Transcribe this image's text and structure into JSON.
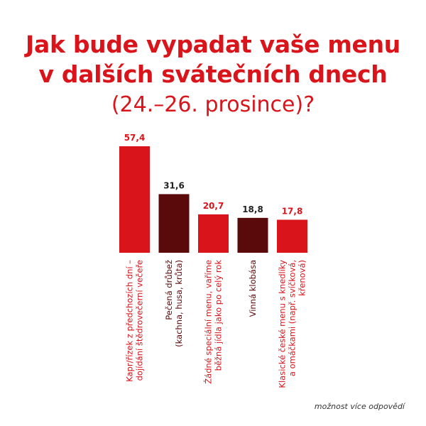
{
  "title_line1": "Jak bude vypadat vaše menu",
  "title_line2": "v dalších svátečních dnech",
  "subtitle": "(24.–26. prosince)?",
  "footnote": "možnost více odpovědí",
  "colors": {
    "accent": "#d9141b",
    "dark": "#5b0a0c",
    "label_dark": "#222222"
  },
  "chart_data": {
    "type": "bar",
    "categories": [
      [
        "Kapr/řízek z předchozích dní –",
        "dojídání štědrovečerní večeře"
      ],
      [
        "Pečená drůbež",
        "(kachna, husa, krůta)"
      ],
      [
        "Žádné speciální menu, vaříme",
        "běžná jídla jako po celý rok"
      ],
      [
        "Vinná klobása"
      ],
      [
        "Klasické české menu s knedlíky",
        "a omáčkami (např. svíčková,",
        "křenová)"
      ]
    ],
    "values": [
      57.4,
      31.6,
      20.7,
      18.8,
      17.8
    ],
    "value_labels": [
      "57,4",
      "31,6",
      "20,7",
      "18,8",
      "17,8"
    ],
    "bar_colors": [
      "#d9141b",
      "#5b0a0c",
      "#d9141b",
      "#5b0a0c",
      "#d9141b"
    ]
  }
}
